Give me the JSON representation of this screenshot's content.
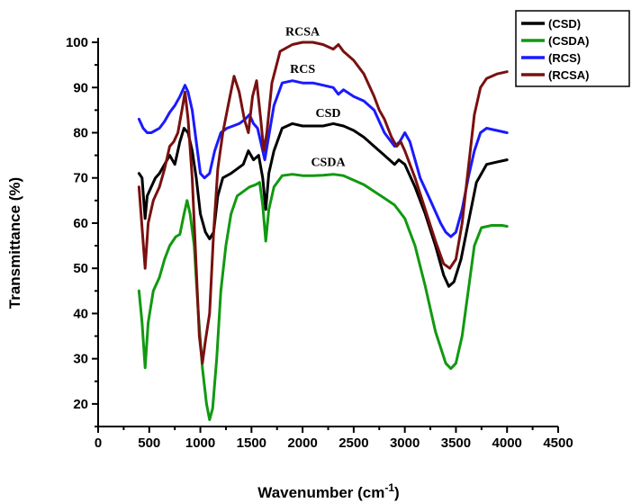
{
  "chart_data": {
    "type": "line",
    "xlabel": "Wavenumber (cm",
    "xlabel_sup": "-1",
    "xlabel_end": ")",
    "ylabel": "Transmittance (%)",
    "xlim": [
      0,
      4500
    ],
    "ylim": [
      15,
      101
    ],
    "xticks": [
      0,
      500,
      1000,
      1500,
      2000,
      2500,
      3000,
      3500,
      4000,
      4500
    ],
    "yticks": [
      20,
      30,
      40,
      50,
      60,
      70,
      80,
      90,
      100
    ],
    "grid": false,
    "legend_position": "top-right",
    "series": [
      {
        "name": "(CSD)",
        "color": "#000000",
        "points": [
          [
            400,
            71
          ],
          [
            430,
            70
          ],
          [
            460,
            61
          ],
          [
            480,
            66
          ],
          [
            520,
            68
          ],
          [
            560,
            70
          ],
          [
            600,
            71
          ],
          [
            650,
            73
          ],
          [
            700,
            75
          ],
          [
            750,
            73
          ],
          [
            800,
            78
          ],
          [
            840,
            81
          ],
          [
            880,
            80
          ],
          [
            920,
            76
          ],
          [
            960,
            70
          ],
          [
            1000,
            62
          ],
          [
            1050,
            58
          ],
          [
            1090,
            56.5
          ],
          [
            1130,
            58
          ],
          [
            1170,
            66
          ],
          [
            1220,
            70
          ],
          [
            1300,
            71
          ],
          [
            1360,
            72
          ],
          [
            1420,
            73
          ],
          [
            1470,
            76
          ],
          [
            1520,
            74
          ],
          [
            1570,
            75
          ],
          [
            1610,
            70
          ],
          [
            1640,
            63
          ],
          [
            1670,
            71
          ],
          [
            1720,
            76
          ],
          [
            1800,
            81
          ],
          [
            1900,
            82
          ],
          [
            2000,
            81.5
          ],
          [
            2100,
            81.5
          ],
          [
            2200,
            81.5
          ],
          [
            2300,
            82
          ],
          [
            2400,
            81.5
          ],
          [
            2500,
            80.5
          ],
          [
            2600,
            79
          ],
          [
            2700,
            77
          ],
          [
            2800,
            75
          ],
          [
            2900,
            73
          ],
          [
            2940,
            74
          ],
          [
            3000,
            73
          ],
          [
            3100,
            68
          ],
          [
            3200,
            62
          ],
          [
            3300,
            55
          ],
          [
            3380,
            48.5
          ],
          [
            3430,
            46
          ],
          [
            3480,
            47
          ],
          [
            3550,
            52
          ],
          [
            3620,
            60
          ],
          [
            3700,
            69
          ],
          [
            3800,
            73
          ],
          [
            3900,
            73.5
          ],
          [
            4000,
            74
          ]
        ]
      },
      {
        "name": "(CSDA)",
        "color": "#119911",
        "points": [
          [
            400,
            45
          ],
          [
            430,
            38
          ],
          [
            460,
            28
          ],
          [
            490,
            38
          ],
          [
            540,
            45
          ],
          [
            600,
            48
          ],
          [
            650,
            52
          ],
          [
            700,
            55
          ],
          [
            760,
            57
          ],
          [
            800,
            57.5
          ],
          [
            840,
            62
          ],
          [
            870,
            65
          ],
          [
            900,
            62
          ],
          [
            940,
            55
          ],
          [
            980,
            40
          ],
          [
            1020,
            28
          ],
          [
            1060,
            20
          ],
          [
            1090,
            16.5
          ],
          [
            1120,
            19
          ],
          [
            1160,
            30
          ],
          [
            1200,
            45
          ],
          [
            1250,
            55
          ],
          [
            1300,
            62
          ],
          [
            1360,
            66
          ],
          [
            1420,
            67
          ],
          [
            1480,
            68
          ],
          [
            1540,
            68.5
          ],
          [
            1580,
            69
          ],
          [
            1610,
            64
          ],
          [
            1640,
            56
          ],
          [
            1670,
            63
          ],
          [
            1720,
            68
          ],
          [
            1800,
            70.5
          ],
          [
            1900,
            70.8
          ],
          [
            2000,
            70.5
          ],
          [
            2100,
            70.5
          ],
          [
            2200,
            70.6
          ],
          [
            2300,
            70.8
          ],
          [
            2400,
            70.5
          ],
          [
            2500,
            69.5
          ],
          [
            2600,
            68.5
          ],
          [
            2700,
            67
          ],
          [
            2800,
            65.5
          ],
          [
            2900,
            64
          ],
          [
            3000,
            61
          ],
          [
            3100,
            55
          ],
          [
            3200,
            46
          ],
          [
            3300,
            36
          ],
          [
            3400,
            29
          ],
          [
            3450,
            27.8
          ],
          [
            3500,
            29
          ],
          [
            3560,
            35
          ],
          [
            3620,
            45
          ],
          [
            3680,
            55
          ],
          [
            3750,
            59
          ],
          [
            3850,
            59.5
          ],
          [
            3950,
            59.5
          ],
          [
            4000,
            59.3
          ]
        ]
      },
      {
        "name": "(RCS)",
        "color": "#1a1aff",
        "points": [
          [
            400,
            83
          ],
          [
            440,
            81
          ],
          [
            480,
            80
          ],
          [
            520,
            80
          ],
          [
            560,
            80.5
          ],
          [
            600,
            81
          ],
          [
            650,
            82.5
          ],
          [
            700,
            84.5
          ],
          [
            750,
            86
          ],
          [
            800,
            88
          ],
          [
            850,
            90.5
          ],
          [
            880,
            89
          ],
          [
            920,
            85
          ],
          [
            960,
            78
          ],
          [
            1000,
            71
          ],
          [
            1040,
            70
          ],
          [
            1090,
            71
          ],
          [
            1140,
            76
          ],
          [
            1200,
            80
          ],
          [
            1260,
            81
          ],
          [
            1320,
            81.5
          ],
          [
            1380,
            82
          ],
          [
            1440,
            83
          ],
          [
            1480,
            84
          ],
          [
            1520,
            82
          ],
          [
            1560,
            81
          ],
          [
            1600,
            77
          ],
          [
            1630,
            74
          ],
          [
            1660,
            78
          ],
          [
            1720,
            86
          ],
          [
            1800,
            91
          ],
          [
            1900,
            91.5
          ],
          [
            2000,
            91
          ],
          [
            2100,
            91
          ],
          [
            2200,
            90.5
          ],
          [
            2300,
            90
          ],
          [
            2350,
            88.5
          ],
          [
            2400,
            89.5
          ],
          [
            2500,
            88
          ],
          [
            2600,
            87
          ],
          [
            2700,
            85
          ],
          [
            2800,
            80
          ],
          [
            2900,
            77
          ],
          [
            2950,
            78
          ],
          [
            3000,
            80
          ],
          [
            3050,
            78
          ],
          [
            3150,
            70
          ],
          [
            3250,
            65
          ],
          [
            3350,
            60
          ],
          [
            3400,
            58
          ],
          [
            3450,
            57
          ],
          [
            3500,
            58
          ],
          [
            3560,
            63
          ],
          [
            3620,
            70
          ],
          [
            3680,
            76
          ],
          [
            3740,
            80
          ],
          [
            3800,
            81
          ],
          [
            3900,
            80.5
          ],
          [
            4000,
            80
          ]
        ]
      },
      {
        "name": "(RCSA)",
        "color": "#7a1010",
        "points": [
          [
            400,
            68
          ],
          [
            430,
            59
          ],
          [
            460,
            50
          ],
          [
            490,
            60
          ],
          [
            540,
            65
          ],
          [
            600,
            68
          ],
          [
            650,
            72
          ],
          [
            700,
            77
          ],
          [
            740,
            78
          ],
          [
            780,
            80
          ],
          [
            820,
            85
          ],
          [
            850,
            89
          ],
          [
            880,
            83
          ],
          [
            920,
            70
          ],
          [
            960,
            50
          ],
          [
            990,
            35
          ],
          [
            1020,
            29
          ],
          [
            1050,
            34
          ],
          [
            1090,
            40
          ],
          [
            1130,
            58
          ],
          [
            1170,
            72
          ],
          [
            1220,
            80
          ],
          [
            1280,
            87
          ],
          [
            1330,
            92.5
          ],
          [
            1380,
            89
          ],
          [
            1430,
            83
          ],
          [
            1470,
            80
          ],
          [
            1510,
            88
          ],
          [
            1550,
            91.5
          ],
          [
            1590,
            83
          ],
          [
            1620,
            76
          ],
          [
            1650,
            80
          ],
          [
            1700,
            91
          ],
          [
            1780,
            98
          ],
          [
            1900,
            99.5
          ],
          [
            2000,
            100
          ],
          [
            2100,
            100
          ],
          [
            2200,
            99.5
          ],
          [
            2300,
            98.5
          ],
          [
            2350,
            99.5
          ],
          [
            2400,
            98
          ],
          [
            2500,
            96
          ],
          [
            2600,
            93
          ],
          [
            2700,
            88
          ],
          [
            2750,
            85
          ],
          [
            2800,
            83
          ],
          [
            2870,
            79
          ],
          [
            2920,
            77
          ],
          [
            2960,
            78
          ],
          [
            3000,
            76
          ],
          [
            3100,
            70
          ],
          [
            3200,
            63
          ],
          [
            3300,
            56
          ],
          [
            3380,
            51
          ],
          [
            3440,
            50
          ],
          [
            3500,
            52
          ],
          [
            3560,
            60
          ],
          [
            3620,
            72
          ],
          [
            3680,
            84
          ],
          [
            3740,
            90
          ],
          [
            3800,
            92
          ],
          [
            3900,
            93
          ],
          [
            4000,
            93.5
          ]
        ]
      }
    ],
    "annotations": [
      {
        "text": "RCSA",
        "x": 2000,
        "y": 101.5
      },
      {
        "text": "RCS",
        "x": 2000,
        "y": 93.2
      },
      {
        "text": "CSD",
        "x": 2250,
        "y": 83.5
      },
      {
        "text": "CSDA",
        "x": 2250,
        "y": 72.6
      }
    ]
  }
}
